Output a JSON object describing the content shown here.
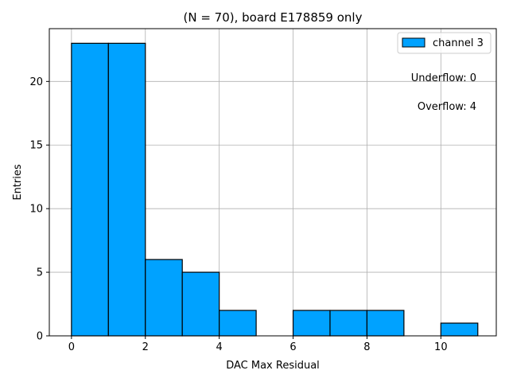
{
  "chart_data": {
    "type": "bar",
    "title": "(N = 70), board E178859 only",
    "xlabel": "DAC Max Residual",
    "ylabel": "Entries",
    "xlim": [
      -0.6,
      11.5
    ],
    "ylim": [
      0,
      24.15
    ],
    "xticks": [
      0,
      2,
      4,
      6,
      8,
      10
    ],
    "yticks": [
      0,
      5,
      10,
      15,
      20
    ],
    "grid": true,
    "bin_edges": [
      0,
      1,
      2,
      3,
      4,
      5,
      6,
      7,
      8,
      9,
      10,
      11
    ],
    "series": [
      {
        "name": "channel 3",
        "color": "#00a2ff",
        "edgecolor": "#000000",
        "values": [
          23,
          23,
          6,
          5,
          2,
          0,
          2,
          2,
          2,
          0,
          1
        ]
      }
    ],
    "legend": {
      "placement": "top-right",
      "label": "channel 3"
    },
    "annotations": {
      "underflow": "Underflow: 0",
      "overflow": "Overflow: 4"
    }
  }
}
